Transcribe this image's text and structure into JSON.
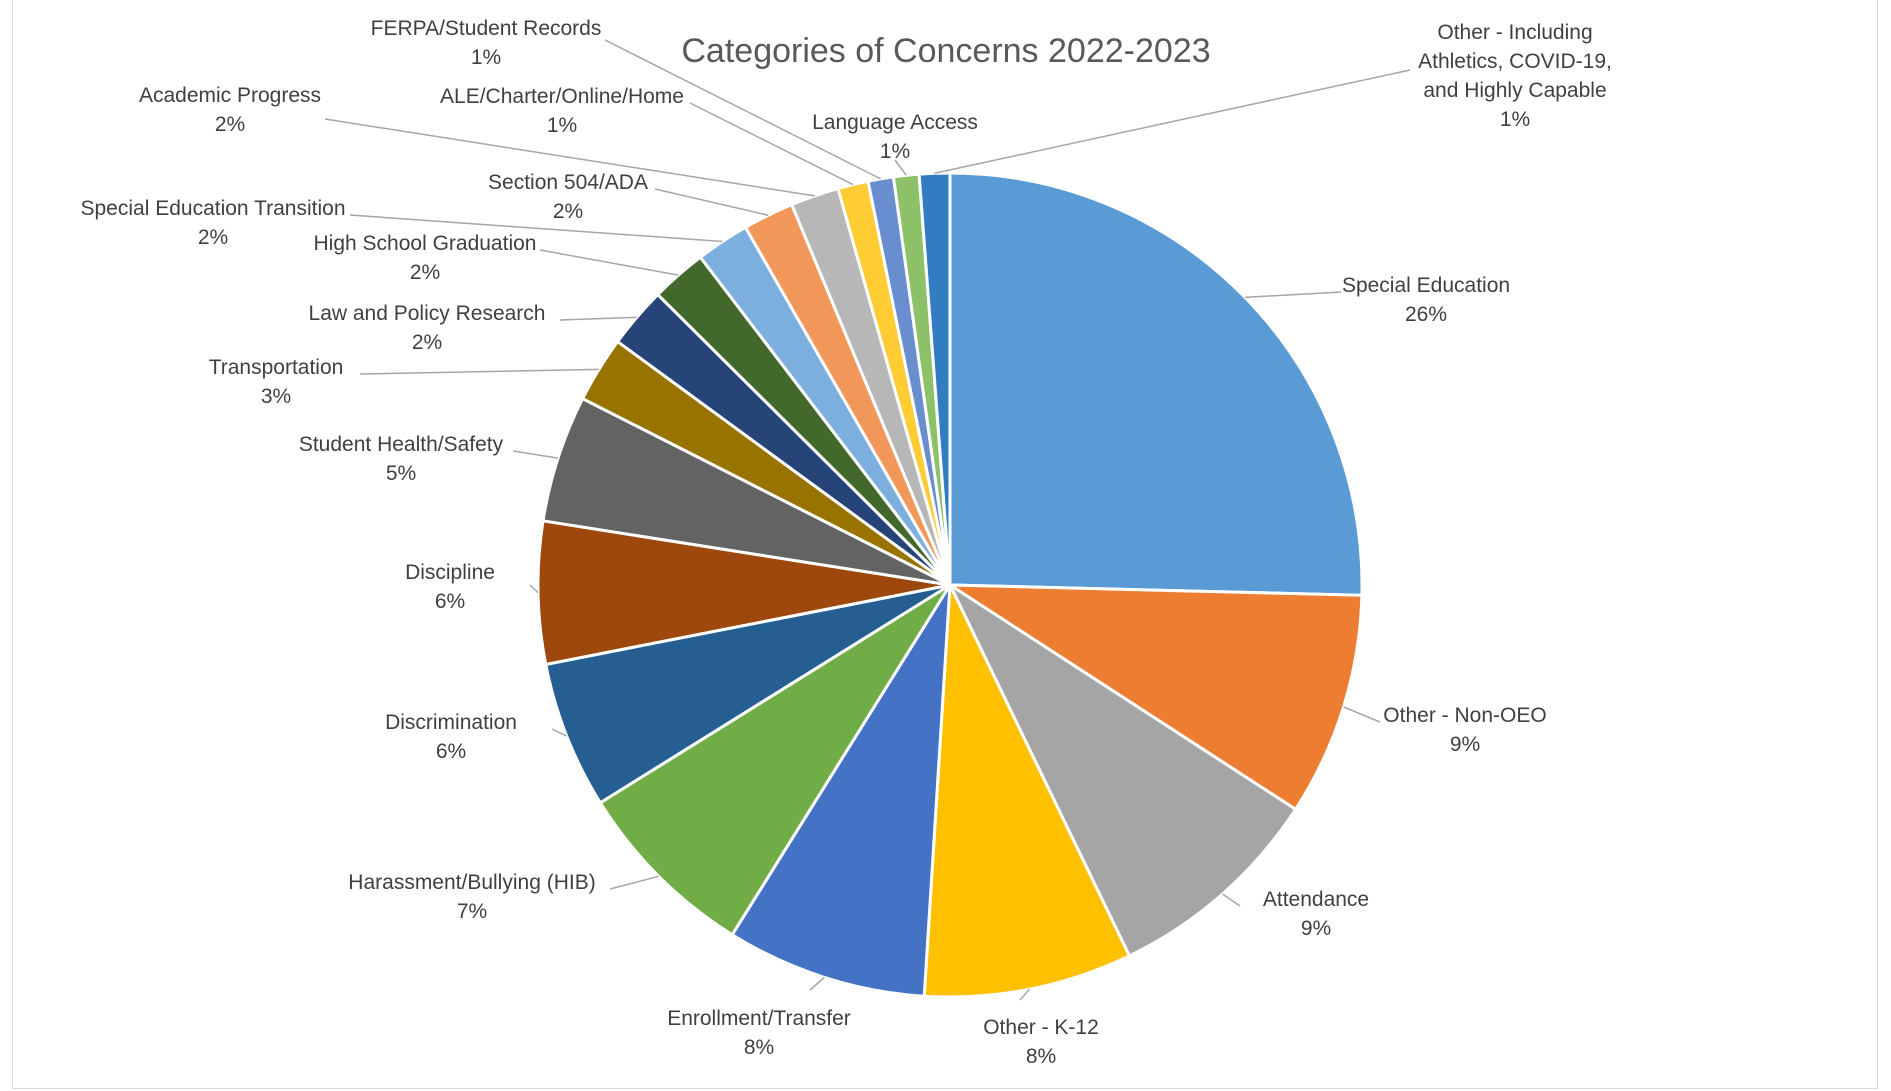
{
  "chart_data": {
    "type": "pie",
    "title": "Categories of Concerns 2022-2023",
    "slices": [
      {
        "label": "Special Education",
        "value_label": "26%",
        "value": 25.5,
        "color": "#5B9BD5"
      },
      {
        "label": "Other - Non-OEO",
        "value_label": "9%",
        "value": 8.8,
        "color": "#ED7D31"
      },
      {
        "label": "Attendance",
        "value_label": "9%",
        "value": 8.7,
        "color": "#A5A5A5"
      },
      {
        "label": "Other - K-12",
        "value_label": "8%",
        "value": 8.2,
        "color": "#FFC000"
      },
      {
        "label": "Enrollment/Transfer",
        "value_label": "8%",
        "value": 7.9,
        "color": "#4472C4"
      },
      {
        "label": "Harassment/Bullying (HIB)",
        "value_label": "7%",
        "value": 7.3,
        "color": "#70AD47"
      },
      {
        "label": "Discrimination",
        "value_label": "6%",
        "value": 5.8,
        "color": "#255E91"
      },
      {
        "label": "Discipline",
        "value_label": "6%",
        "value": 5.6,
        "color": "#9E480E"
      },
      {
        "label": "Student Health/Safety",
        "value_label": "5%",
        "value": 5.0,
        "color": "#636363"
      },
      {
        "label": "Transportation",
        "value_label": "3%",
        "value": 2.6,
        "color": "#997300"
      },
      {
        "label": "Law and Policy Research",
        "value_label": "2%",
        "value": 2.4,
        "color": "#264478"
      },
      {
        "label": "High School Graduation",
        "value_label": "2%",
        "value": 2.2,
        "color": "#43682B"
      },
      {
        "label": "Special Education Transition",
        "value_label": "2%",
        "value": 2.1,
        "color": "#7CAFDD"
      },
      {
        "label": "Section 504/ADA",
        "value_label": "2%",
        "value": 2.0,
        "color": "#F1975A"
      },
      {
        "label": "Academic Progress",
        "value_label": "2%",
        "value": 1.9,
        "color": "#B7B7B7"
      },
      {
        "label": "ALE/Charter/Online/Home",
        "value_label": "1%",
        "value": 1.2,
        "color": "#FFCD33"
      },
      {
        "label": "FERPA/Student Records",
        "value_label": "1%",
        "value": 1.0,
        "color": "#698ED0"
      },
      {
        "label": "Language Access",
        "value_label": "1%",
        "value": 1.0,
        "color": "#8CC168"
      },
      {
        "label": "Other - Including Athletics, COVID-19, and Highly Capable",
        "value_label": "1%",
        "value": 1.2,
        "color": "#327DC2"
      }
    ]
  }
}
